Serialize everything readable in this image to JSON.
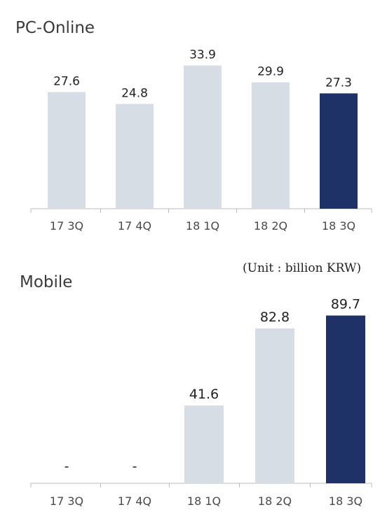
{
  "chart_data": [
    {
      "type": "bar",
      "title": "PC-Online",
      "categories": [
        "17 3Q",
        "17 4Q",
        "18 1Q",
        "18 2Q",
        "18 3Q"
      ],
      "values": [
        27.6,
        24.8,
        33.9,
        29.9,
        27.3
      ],
      "value_labels": [
        "27.6",
        "24.8",
        "33.9",
        "29.9",
        "27.3"
      ],
      "ylim": [
        0,
        37.8
      ],
      "grid": false,
      "highlight_index": 4
    },
    {
      "type": "bar",
      "title": "Mobile",
      "unit_note": "(Unit : billion KRW)",
      "categories": [
        "17 3Q",
        "17 4Q",
        "18 1Q",
        "18 2Q",
        "18 3Q"
      ],
      "values": [
        null,
        null,
        41.6,
        82.8,
        89.7
      ],
      "value_labels": [
        "-",
        "-",
        "41.6",
        "82.8",
        "89.7"
      ],
      "ylim": [
        0,
        100
      ],
      "grid": false,
      "highlight_index": 4
    }
  ],
  "colors": {
    "bar": "#d6dde4",
    "highlight": "#1f3268",
    "axis": "#bbbbbb",
    "tick_label": "#4a4a4a",
    "value_label": "#222222"
  }
}
